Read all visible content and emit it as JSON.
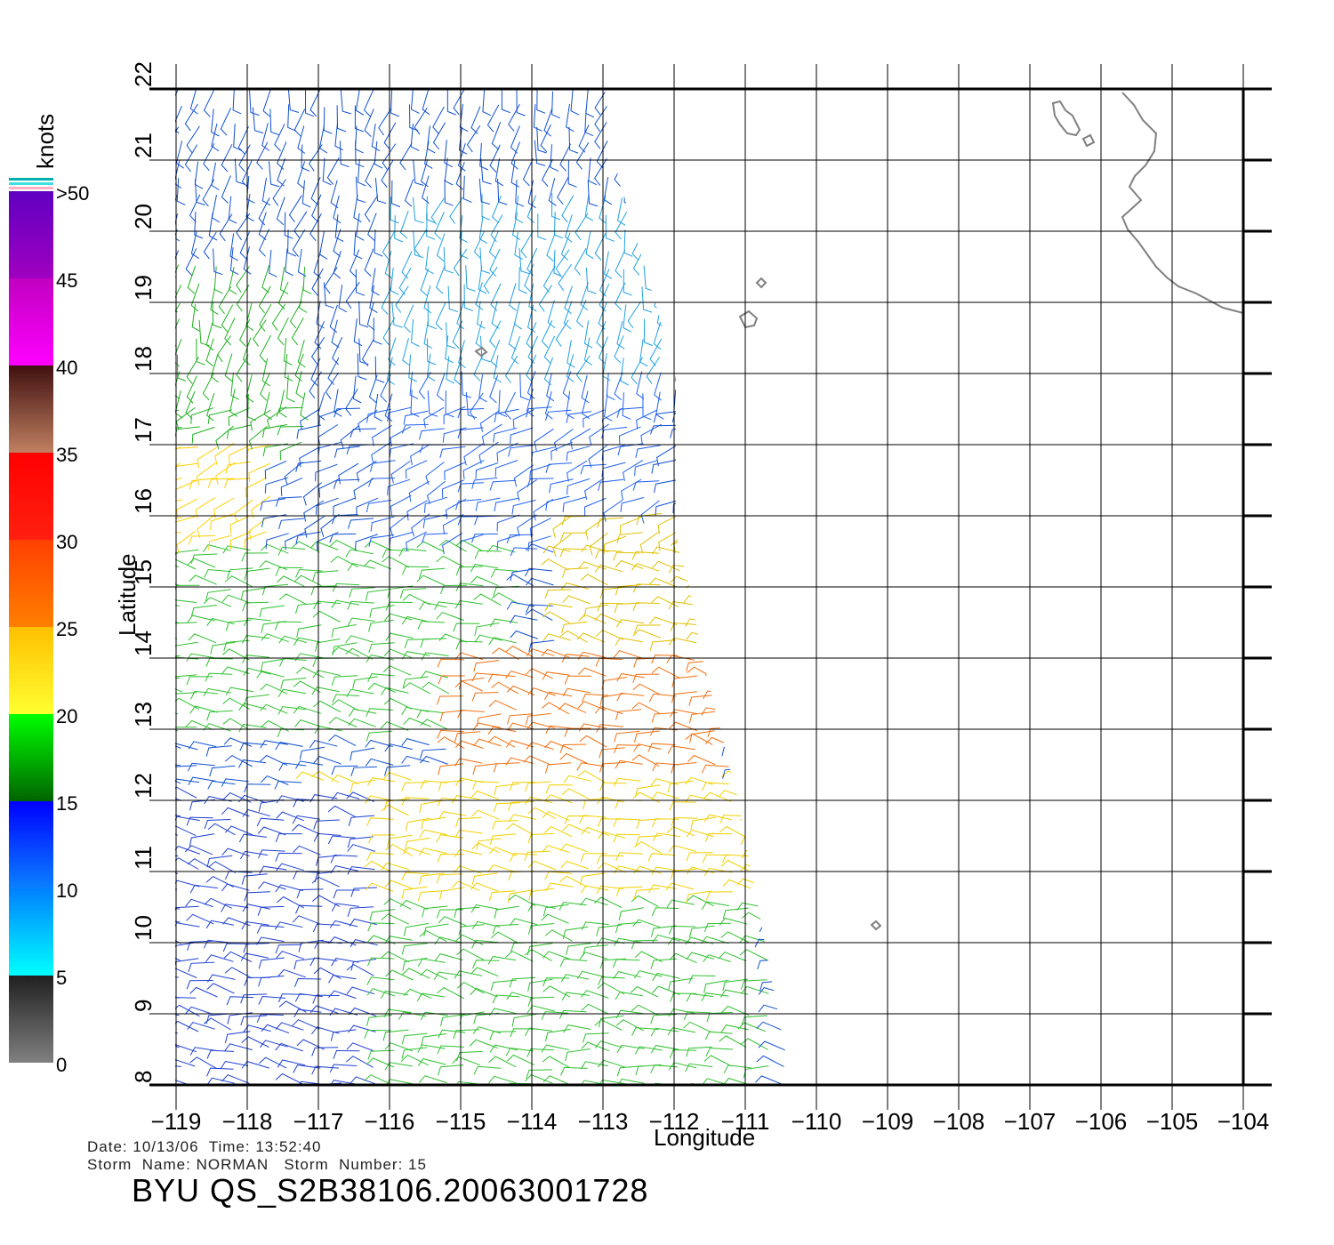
{
  "legend": {
    "unit": "knots",
    "ticks": [
      {
        "value": 0,
        "label": "0"
      },
      {
        "value": 5,
        "label": "5"
      },
      {
        "value": 10,
        "label": "10"
      },
      {
        "value": 15,
        "label": "15"
      },
      {
        "value": 20,
        "label": "20"
      },
      {
        "value": 25,
        "label": "25"
      },
      {
        "value": 30,
        "label": "30"
      },
      {
        "value": 35,
        "label": "35"
      },
      {
        "value": 40,
        "label": "40"
      },
      {
        "value": 45,
        "label": "45"
      },
      {
        "value": 50,
        "label": ">50"
      }
    ],
    "bands": [
      {
        "min": 0,
        "max": 5,
        "colors": [
          "#808080",
          "#202020"
        ]
      },
      {
        "min": 5,
        "max": 10,
        "colors": [
          "#00ffff",
          "#0080ff"
        ]
      },
      {
        "min": 10,
        "max": 15,
        "colors": [
          "#0a80ff",
          "#0000ff"
        ]
      },
      {
        "min": 15,
        "max": 20,
        "colors": [
          "#006400",
          "#00ff00"
        ]
      },
      {
        "min": 20,
        "max": 25,
        "colors": [
          "#ffff30",
          "#ffc000"
        ]
      },
      {
        "min": 25,
        "max": 30,
        "colors": [
          "#ff8000",
          "#ff4000"
        ]
      },
      {
        "min": 30,
        "max": 35,
        "colors": [
          "#ff2010",
          "#ff0000"
        ]
      },
      {
        "min": 35,
        "max": 40,
        "colors": [
          "#c08060",
          "#401010"
        ]
      },
      {
        "min": 40,
        "max": 45,
        "colors": [
          "#ff00ff",
          "#c000c0"
        ]
      },
      {
        "min": 45,
        "max": 50,
        "colors": [
          "#a000c0",
          "#6000c0"
        ]
      }
    ]
  },
  "axes": {
    "xlabel": "Longitude",
    "ylabel": "Latitude",
    "lon_ticks": [
      -119,
      -118,
      -117,
      -116,
      -115,
      -114,
      -113,
      -112,
      -111,
      -110,
      -109,
      -108,
      -107,
      -106,
      -105,
      -104
    ],
    "lat_ticks": [
      8,
      9,
      10,
      11,
      12,
      13,
      14,
      15,
      16,
      17,
      18,
      19,
      20,
      21,
      22
    ],
    "lon_range": [
      -119,
      -104
    ],
    "lat_range": [
      8,
      22
    ]
  },
  "map": {
    "grid": true,
    "land_outline_color": "#808080",
    "wind_barbs_region": "swath from -119 to about -110.5 longitude, 8 to 22 latitude",
    "wind_field": [
      {
        "lon_min": -119,
        "lon_max": -112.5,
        "lat_min": 18.5,
        "lat_max": 22,
        "speed_kt": 12,
        "color": "#1050d0"
      },
      {
        "lon_min": -116,
        "lon_max": -112,
        "lat_min": 18,
        "lat_max": 20.5,
        "speed_kt": 8,
        "color": "#20a0e0"
      },
      {
        "lon_min": -119,
        "lon_max": -117,
        "lat_min": 17,
        "lat_max": 19.5,
        "speed_kt": 17,
        "color": "#20b020"
      },
      {
        "lon_min": -119,
        "lon_max": -117.5,
        "lat_min": 15.5,
        "lat_max": 17,
        "speed_kt": 23,
        "color": "#ffd000"
      },
      {
        "lon_min": -116,
        "lon_max": -112,
        "lat_min": 15.5,
        "lat_max": 18,
        "speed_kt": 11,
        "color": "#2060f0"
      },
      {
        "lon_min": -113.5,
        "lon_max": -111,
        "lat_min": 14,
        "lat_max": 16,
        "speed_kt": 21,
        "color": "#e0c000"
      },
      {
        "lon_min": -119,
        "lon_max": -114,
        "lat_min": 13,
        "lat_max": 15.5,
        "speed_kt": 17,
        "color": "#30c030"
      },
      {
        "lon_min": -115,
        "lon_max": -111,
        "lat_min": 12.3,
        "lat_max": 14,
        "speed_kt": 27,
        "color": "#f07010"
      },
      {
        "lon_min": -117,
        "lon_max": -110.5,
        "lat_min": 10.5,
        "lat_max": 12.3,
        "speed_kt": 22,
        "color": "#f0d000"
      },
      {
        "lon_min": -119,
        "lon_max": -110.5,
        "lat_min": 8,
        "lat_max": 10.5,
        "speed_kt": 17,
        "color": "#30c030"
      },
      {
        "lon_min": -119,
        "lon_max": -116,
        "lat_min": 8,
        "lat_max": 12,
        "speed_kt": 13,
        "color": "#2040d0"
      }
    ]
  },
  "footer": {
    "date_label": "Date:",
    "date": "10/13/06",
    "time_label": "Time:",
    "time": "13:52:40",
    "storm_name_label": "Storm  Name:",
    "storm_name": "NORMAN",
    "storm_number_label": "Storm  Number:",
    "storm_number": "15",
    "title": "BYU  QS_S2B38106.20063001728"
  }
}
